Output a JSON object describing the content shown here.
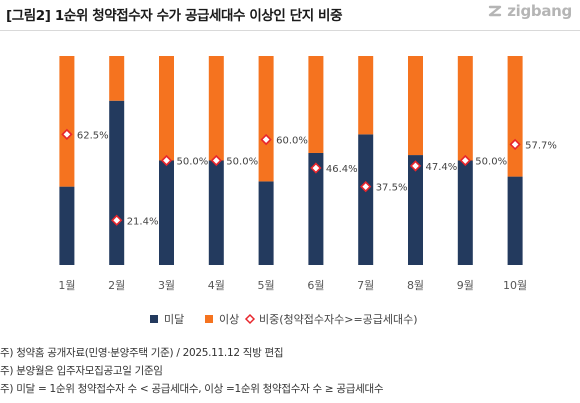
{
  "header": {
    "title": "[그림2] 1순위 청약접수자 수가 공급세대수 이상인 단지 비중",
    "brand": "zigbang"
  },
  "colors": {
    "below": "#233a5e",
    "above": "#f5731f",
    "ratio_marker": "#e8262c",
    "brand": "#b5b5b5"
  },
  "chart_data": {
    "type": "bar",
    "stacked": true,
    "normalized": true,
    "categories": [
      "1월",
      "2월",
      "3월",
      "4월",
      "5월",
      "6월",
      "7월",
      "8월",
      "9월",
      "10월"
    ],
    "series": [
      {
        "name": "미달",
        "values": [
          37.5,
          78.6,
          50.0,
          50.0,
          40.0,
          53.6,
          62.5,
          52.6,
          50.0,
          42.3
        ]
      },
      {
        "name": "이상",
        "values": [
          62.5,
          21.4,
          50.0,
          50.0,
          60.0,
          46.4,
          37.5,
          47.4,
          50.0,
          57.7
        ]
      }
    ],
    "ratio_series": {
      "name": "비중(청약접수자수>=공급세대수)",
      "values": [
        62.5,
        21.4,
        50.0,
        50.0,
        60.0,
        46.4,
        37.5,
        47.4,
        50.0,
        57.7
      ],
      "labels": [
        "62.5%",
        "21.4%",
        "50.0%",
        "50.0%",
        "60.0%",
        "46.4%",
        "37.5%",
        "47.4%",
        "50.0%",
        "57.7%"
      ]
    },
    "ylim": [
      0,
      100
    ],
    "grid": false,
    "legend_position": "bottom"
  },
  "notes": [
    "주) 청약홈 공개자료(민영·분양주택 기준) / 2025.11.12 직방 편집",
    "주) 분양월은 입주자모집공고일 기준임",
    "주) 미달 = 1순위 청약접수자 수 < 공급세대수, 이상 =1순위 청약접수자 수 ≥ 공급세대수"
  ]
}
